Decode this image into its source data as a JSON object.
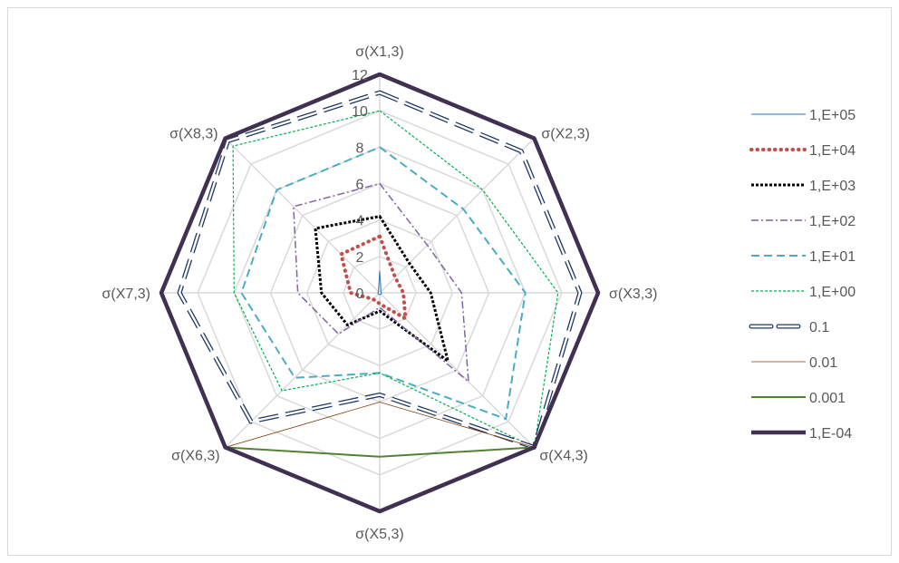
{
  "chart_data": {
    "type": "radar",
    "title": "",
    "categories": [
      "σ(X1,3)",
      "σ(X2,3)",
      "σ(X3,3)",
      "σ(X4,3)",
      "σ(X5,3)",
      "σ(X6,3)",
      "σ(X7,3)",
      "σ(X8,3)"
    ],
    "rlim": [
      0,
      12
    ],
    "ticks": [
      0,
      2,
      4,
      6,
      8,
      10,
      12
    ],
    "tick_labels": [
      "0",
      "2",
      "4",
      "6",
      "8",
      "10",
      "12"
    ],
    "grid": true,
    "legend_position": "right",
    "series": [
      {
        "name": "1,E+05",
        "values": [
          1.2,
          0.1,
          0.1,
          0.1,
          0.1,
          0.1,
          0.1,
          0.1
        ],
        "color": "#2e75b6",
        "dash": "",
        "width": 1
      },
      {
        "name": "1,E+04",
        "values": [
          3.1,
          1.2,
          1.3,
          2.0,
          0.6,
          0.5,
          1.6,
          3.0
        ],
        "color": "#c0504d",
        "dash": "0.5 6",
        "width": 4,
        "linecap": "round"
      },
      {
        "name": "1,E+03",
        "values": [
          4.2,
          2.3,
          2.8,
          5.3,
          1.0,
          2.5,
          3.2,
          5.0
        ],
        "color": "#000000",
        "dash": "3 2",
        "width": 3
      },
      {
        "name": "1,E+02",
        "values": [
          6.0,
          3.7,
          4.5,
          6.9,
          0.8,
          3.2,
          4.5,
          6.7
        ],
        "color": "#8064a2",
        "dash": "8 3 2 3",
        "width": 1.5
      },
      {
        "name": "1,E+01",
        "values": [
          8.0,
          6.5,
          8.0,
          9.8,
          4.4,
          6.6,
          7.6,
          8.0
        ],
        "color": "#4bacc6",
        "dash": "9 5",
        "width": 2
      },
      {
        "name": "1,E+00",
        "values": [
          10.0,
          8.0,
          9.8,
          12.0,
          4.4,
          7.6,
          8.0,
          11.4
        ],
        "color": "#00b050",
        "dash": "3 2",
        "width": 1.2
      },
      {
        "name": "0.1",
        "values": [
          11.0,
          11.0,
          11.0,
          12.0,
          5.6,
          10.0,
          11.0,
          11.8
        ],
        "color": "#1f3864",
        "dash": "22 8",
        "width": 5,
        "outline": true
      },
      {
        "name": "0.01",
        "values": [
          12.0,
          12.0,
          12.0,
          12.0,
          6.0,
          12.0,
          12.0,
          12.0
        ],
        "color": "#843c0c",
        "dash": "",
        "width": 0.8
      },
      {
        "name": "0.001",
        "values": [
          12.0,
          12.0,
          12.0,
          12.0,
          9.0,
          12.0,
          12.0,
          12.0
        ],
        "color": "#548235",
        "dash": "",
        "width": 2
      },
      {
        "name": "1,E-04",
        "values": [
          12.0,
          12.0,
          12.0,
          12.0,
          12.0,
          12.0,
          12.0,
          12.0
        ],
        "color": "#403152",
        "dash": "",
        "width": 4.5
      }
    ]
  }
}
